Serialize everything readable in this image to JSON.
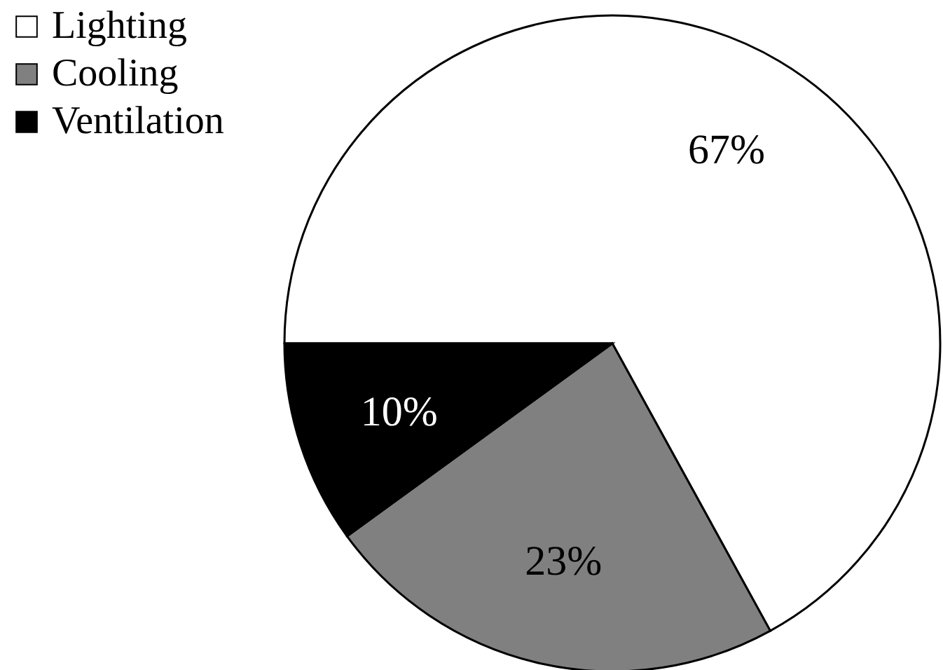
{
  "chart_data": {
    "type": "pie",
    "categories": [
      "Lighting",
      "Cooling",
      "Ventilation"
    ],
    "values": [
      67,
      23,
      10
    ],
    "colors": [
      "#ffffff",
      "#808080",
      "#000000"
    ],
    "value_labels": [
      "67%",
      "23%",
      "10%"
    ],
    "legend": "top left"
  }
}
